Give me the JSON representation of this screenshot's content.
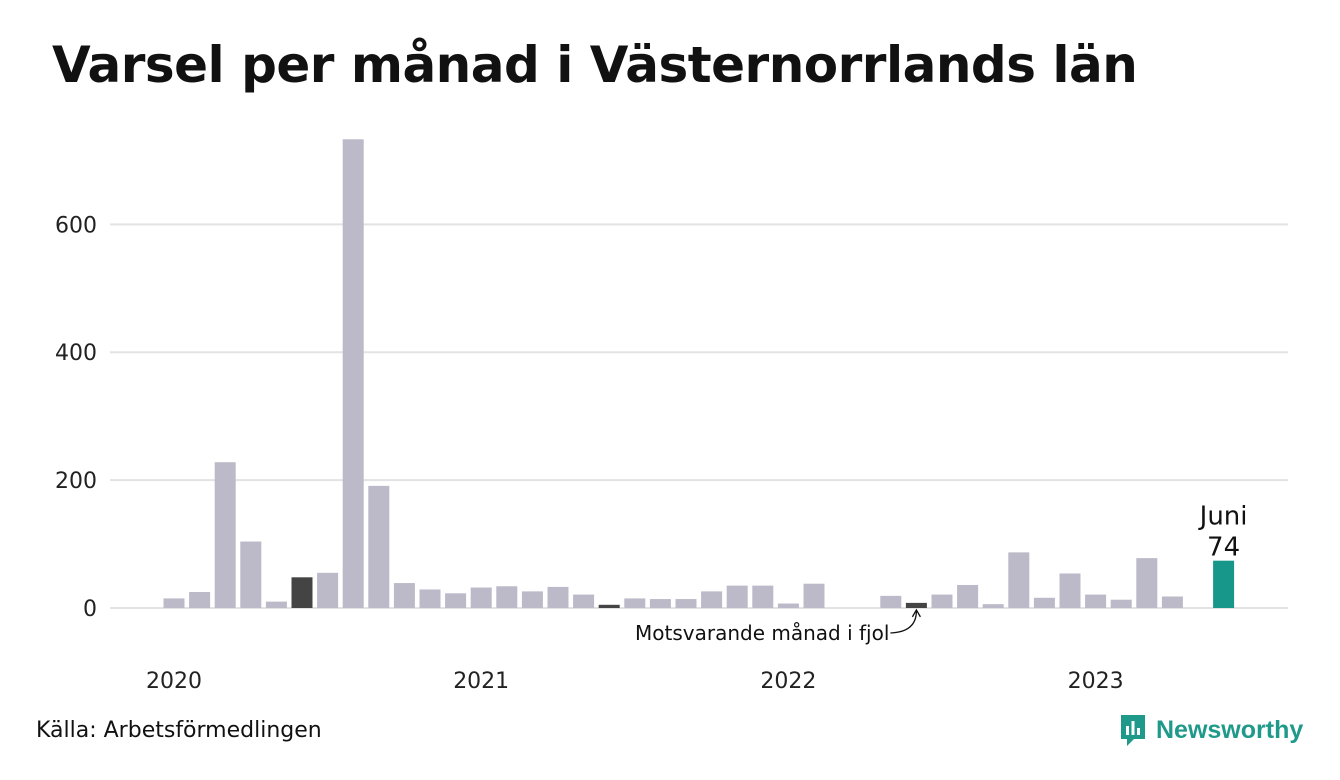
{
  "title": "Varsel per månad i Västernorrlands län",
  "source": "Källa: Arbetsförmedlingen",
  "brand": {
    "name": "Newsworthy",
    "icon": "newsworthy-logo-icon",
    "color": "#1f9a8a"
  },
  "colors": {
    "bar": "#bcbac8",
    "same_month": "#444444",
    "highlight": "#17978a",
    "grid": "#e3e3e3"
  },
  "chart_data": {
    "type": "bar",
    "title": "Varsel per månad i Västernorrlands län",
    "xlabel": "",
    "ylabel": "",
    "ylim": [
      0,
      735
    ],
    "yticks": [
      0,
      200,
      400,
      600
    ],
    "grid": true,
    "year_labels": [
      "2020",
      "2021",
      "2022",
      "2023"
    ],
    "categories": [
      "2020-01",
      "2020-02",
      "2020-03",
      "2020-04",
      "2020-05",
      "2020-06",
      "2020-07",
      "2020-08",
      "2020-09",
      "2020-10",
      "2020-11",
      "2020-12",
      "2021-01",
      "2021-02",
      "2021-03",
      "2021-04",
      "2021-05",
      "2021-06",
      "2021-07",
      "2021-08",
      "2021-09",
      "2021-10",
      "2021-11",
      "2021-12",
      "2022-01",
      "2022-02",
      "2022-03",
      "2022-04",
      "2022-05",
      "2022-06",
      "2022-07",
      "2022-08",
      "2022-09",
      "2022-10",
      "2022-11",
      "2022-12",
      "2023-01",
      "2023-02",
      "2023-03",
      "2023-04",
      "2023-05",
      "2023-06"
    ],
    "values": [
      15,
      25,
      228,
      104,
      10,
      48,
      55,
      733,
      191,
      39,
      29,
      23,
      32,
      34,
      26,
      33,
      21,
      5,
      15,
      14,
      14,
      26,
      35,
      35,
      7,
      38,
      0,
      0,
      19,
      8,
      21,
      36,
      6,
      87,
      16,
      54,
      21,
      13,
      78,
      18,
      0,
      74
    ],
    "same_month_indices": [
      5,
      17,
      29
    ],
    "highlight_index": 41,
    "highlight_label": {
      "month": "Juni",
      "value": "74"
    },
    "annotation": {
      "text": "Motsvarande månad i fjol",
      "target_index": 29
    }
  }
}
